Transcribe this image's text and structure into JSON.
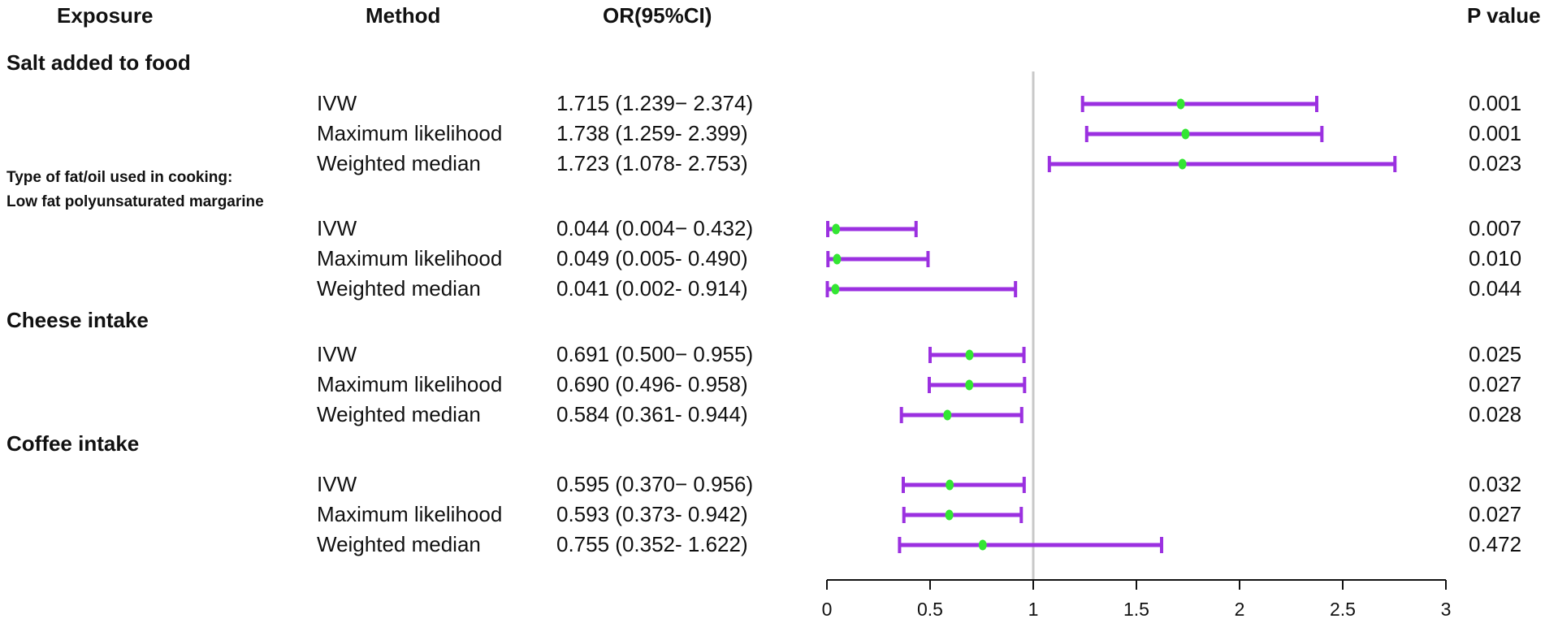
{
  "headers": {
    "exposure": "Exposure",
    "method": "Method",
    "or": "OR(95%CI)",
    "p": "P value"
  },
  "groups": [
    {
      "label": "Salt added to food",
      "rows": [
        {
          "method": "IVW",
          "ci_text": "1.715 (1.239− 2.374)",
          "or": 1.715,
          "lower": 1.239,
          "upper": 2.374,
          "p": "0.001"
        },
        {
          "method": "Maximum likelihood",
          "ci_text": "1.738 (1.259- 2.399)",
          "or": 1.738,
          "lower": 1.259,
          "upper": 2.399,
          "p": "0.001"
        },
        {
          "method": "Weighted median",
          "ci_text": "1.723 (1.078- 2.753)",
          "or": 1.723,
          "lower": 1.078,
          "upper": 2.753,
          "p": "0.023"
        }
      ]
    },
    {
      "label": "Type of fat/oil used in cooking:",
      "label2": "Low fat polyunsaturated margarine",
      "rows": [
        {
          "method": "IVW",
          "ci_text": "0.044 (0.004− 0.432)",
          "or": 0.044,
          "lower": 0.004,
          "upper": 0.432,
          "p": "0.007"
        },
        {
          "method": "Maximum likelihood",
          "ci_text": "0.049 (0.005- 0.490)",
          "or": 0.049,
          "lower": 0.005,
          "upper": 0.49,
          "p": "0.010"
        },
        {
          "method": "Weighted median",
          "ci_text": "0.041 (0.002- 0.914)",
          "or": 0.041,
          "lower": 0.002,
          "upper": 0.914,
          "p": "0.044"
        }
      ]
    },
    {
      "label": "Cheese intake",
      "rows": [
        {
          "method": "IVW",
          "ci_text": "0.691 (0.500− 0.955)",
          "or": 0.691,
          "lower": 0.5,
          "upper": 0.955,
          "p": "0.025"
        },
        {
          "method": "Maximum likelihood",
          "ci_text": "0.690 (0.496- 0.958)",
          "or": 0.69,
          "lower": 0.496,
          "upper": 0.958,
          "p": "0.027"
        },
        {
          "method": "Weighted median",
          "ci_text": "0.584 (0.361- 0.944)",
          "or": 0.584,
          "lower": 0.361,
          "upper": 0.944,
          "p": "0.028"
        }
      ]
    },
    {
      "label": "Coffee intake",
      "rows": [
        {
          "method": "IVW",
          "ci_text": "0.595 (0.370− 0.956)",
          "or": 0.595,
          "lower": 0.37,
          "upper": 0.956,
          "p": "0.032"
        },
        {
          "method": "Maximum likelihood",
          "ci_text": "0.593 (0.373- 0.942)",
          "or": 0.593,
          "lower": 0.373,
          "upper": 0.942,
          "p": "0.027"
        },
        {
          "method": "Weighted median",
          "ci_text": "0.755 (0.352- 1.622)",
          "or": 0.755,
          "lower": 0.352,
          "upper": 1.622,
          "p": "0.472"
        }
      ]
    }
  ],
  "chart_data": {
    "type": "forest",
    "xlim": [
      0,
      3
    ],
    "ticks": [
      0,
      0.5,
      1,
      1.5,
      2,
      2.5,
      3
    ],
    "tick_labels": [
      "0",
      "0.5",
      "1",
      "1.5",
      "2",
      "2.5",
      "3"
    ],
    "reference_line": 1,
    "colors": {
      "ci": "#9b30e0",
      "point": "#33e633",
      "reference": "#c8c8c8",
      "axis": "#111111"
    }
  }
}
